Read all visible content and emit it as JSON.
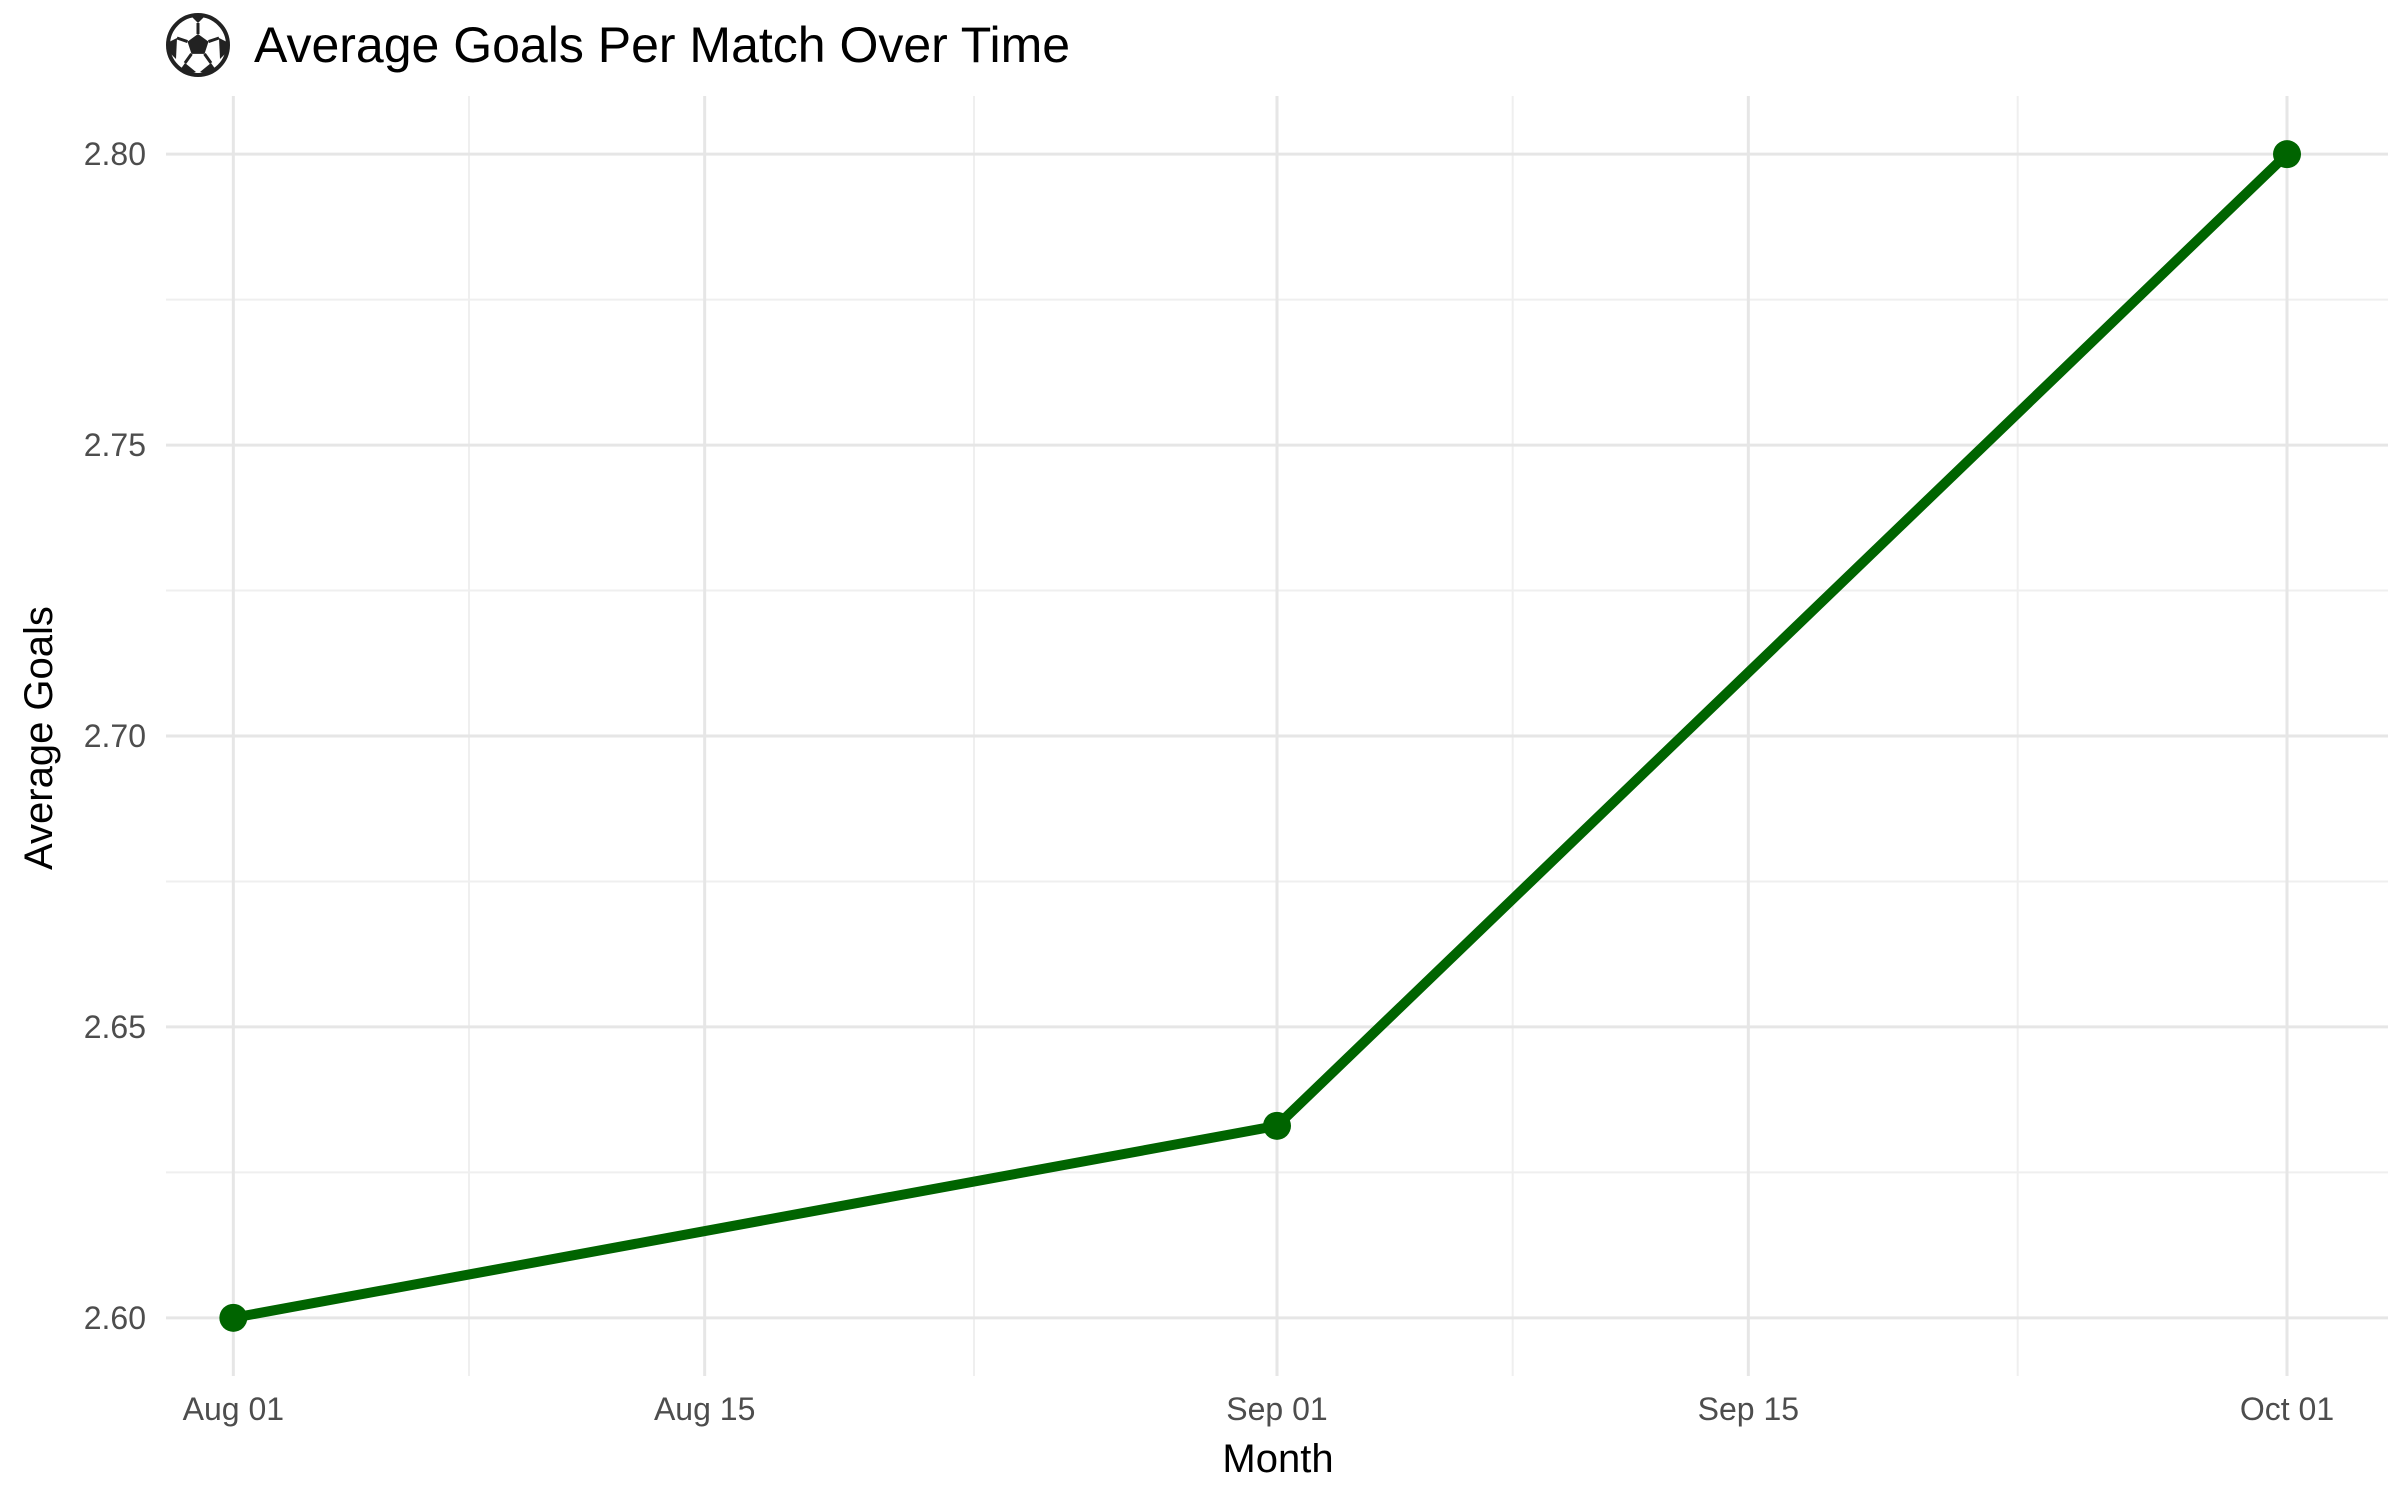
{
  "chart_data": {
    "type": "line",
    "title": "Average Goals Per Match Over Time",
    "title_icon": "soccer-ball-icon",
    "xlabel": "Month",
    "ylabel": "Average Goals",
    "x_axis_type": "date",
    "x": [
      "2023-08-01",
      "2023-09-01",
      "2023-10-01"
    ],
    "xlim": [
      "2023-07-30",
      "2023-10-04"
    ],
    "x_major_ticks": [
      {
        "date": "2023-08-01",
        "label": "Aug 01"
      },
      {
        "date": "2023-08-15",
        "label": "Aug 15"
      },
      {
        "date": "2023-09-01",
        "label": "Sep 01"
      },
      {
        "date": "2023-09-15",
        "label": "Sep 15"
      },
      {
        "date": "2023-10-01",
        "label": "Oct 01"
      }
    ],
    "x_minor_ticks": [
      "2023-08-08",
      "2023-08-23",
      "2023-09-08",
      "2023-09-23"
    ],
    "series": [
      {
        "values": [
          2.6,
          2.633,
          2.8
        ],
        "color": "#006400"
      }
    ],
    "ylim": [
      2.59,
      2.81
    ],
    "y_major_ticks": [
      2.6,
      2.65,
      2.7,
      2.75,
      2.8
    ],
    "y_tick_labels": [
      "2.60",
      "2.65",
      "2.70",
      "2.75",
      "2.80"
    ],
    "y_minor_ticks": [
      2.625,
      2.675,
      2.725,
      2.775
    ],
    "grid": true,
    "legend": "none"
  }
}
